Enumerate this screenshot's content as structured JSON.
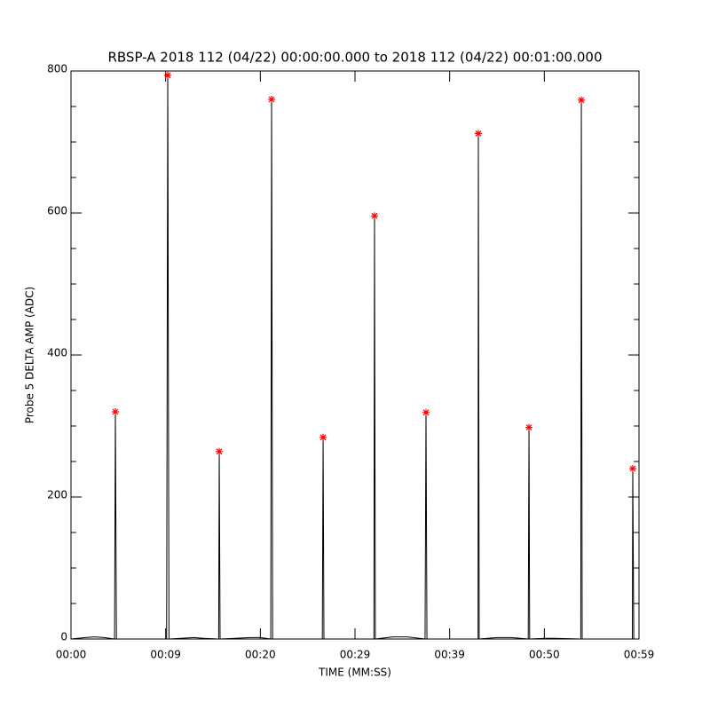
{
  "chart_data": {
    "type": "line",
    "title": "RBSP-A 2018 112 (04/22) 00:00:00.000 to 2018 112 (04/22) 00:01:00.000",
    "xlabel": "TIME (MM:SS)",
    "ylabel": "Probe 5 DELTA AMP (ADC)",
    "xlim": [
      0,
      60
    ],
    "xticks": [
      {
        "value": 0,
        "label": "00:00"
      },
      {
        "value": 10,
        "label": "00:09"
      },
      {
        "value": 20,
        "label": "00:20"
      },
      {
        "value": 30,
        "label": "00:29"
      },
      {
        "value": 40,
        "label": "00:39"
      },
      {
        "value": 50,
        "label": "00:50"
      },
      {
        "value": 60,
        "label": "00:59"
      }
    ],
    "ylim": [
      0,
      800
    ],
    "yticks": [
      0,
      200,
      400,
      600,
      800
    ],
    "yminorticks": [
      50,
      100,
      150,
      250,
      300,
      350,
      450,
      500,
      550,
      650,
      700,
      750
    ],
    "grid": false,
    "series": [
      {
        "color": "#000000",
        "x": [
          0,
          1.5,
          2.5,
          3.5,
          4.6,
          4.69,
          4.8,
          9,
          10.1,
          10.22,
          10.35,
          13,
          14,
          15.6,
          15.66,
          15.75,
          19,
          20,
          21.1,
          21.19,
          21.3,
          26.55,
          26.63,
          26.72,
          30,
          32.0,
          32.06,
          32.15,
          34,
          35.5,
          37.4,
          37.5,
          37.6,
          43.0,
          43.03,
          43.12,
          45,
          46.5,
          48.3,
          48.38,
          48.45,
          50,
          51,
          53.85,
          53.91,
          54.0,
          59.3,
          59.34,
          59.45,
          60
        ],
        "values": [
          0,
          2,
          3,
          2,
          0,
          320,
          0,
          0,
          0,
          794,
          0,
          2,
          1,
          0,
          264,
          0,
          2,
          2,
          0,
          760,
          0,
          0,
          284,
          0,
          0,
          0,
          596,
          0,
          3,
          3,
          0,
          319,
          0,
          0,
          712,
          0,
          2,
          2,
          0,
          298,
          0,
          1,
          1,
          0,
          759,
          0,
          0,
          240,
          0,
          0
        ]
      },
      {
        "color": "#ff0000",
        "marker": "*",
        "x": [
          4.69,
          10.22,
          15.66,
          21.19,
          26.63,
          32.06,
          37.5,
          43.03,
          48.38,
          53.91,
          59.34
        ],
        "values": [
          320,
          794,
          264,
          760,
          284,
          596,
          319,
          712,
          298,
          759,
          240
        ]
      }
    ]
  }
}
